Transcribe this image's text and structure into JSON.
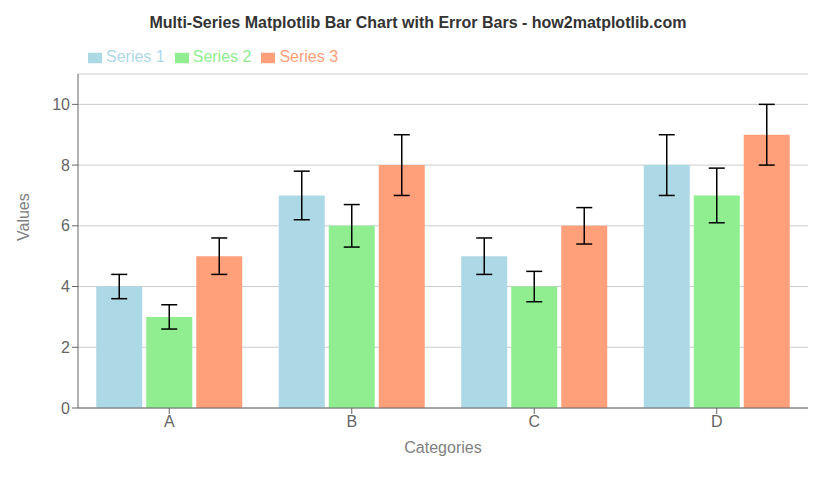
{
  "chart_data": {
    "type": "bar",
    "title": "Multi-Series Matplotlib Bar Chart with Error Bars - how2matplotlib.com",
    "xlabel": "Categories",
    "ylabel": "Values",
    "categories": [
      "A",
      "B",
      "C",
      "D"
    ],
    "series": [
      {
        "name": "Series 1",
        "color": "#ADD8E6",
        "values": [
          4,
          7,
          5,
          8
        ],
        "errors": [
          0.4,
          0.8,
          0.6,
          1.0
        ]
      },
      {
        "name": "Series 2",
        "color": "#90EE90",
        "values": [
          3,
          6,
          4,
          7
        ],
        "errors": [
          0.4,
          0.7,
          0.5,
          0.9
        ]
      },
      {
        "name": "Series 3",
        "color": "#FFA07A",
        "values": [
          5,
          8,
          6,
          9
        ],
        "errors": [
          0.6,
          1.0,
          0.6,
          1.0
        ]
      }
    ],
    "ylim": [
      0,
      11
    ],
    "yticks": [
      0,
      2,
      4,
      6,
      8,
      10
    ],
    "grid": true,
    "legend": "upper left"
  }
}
